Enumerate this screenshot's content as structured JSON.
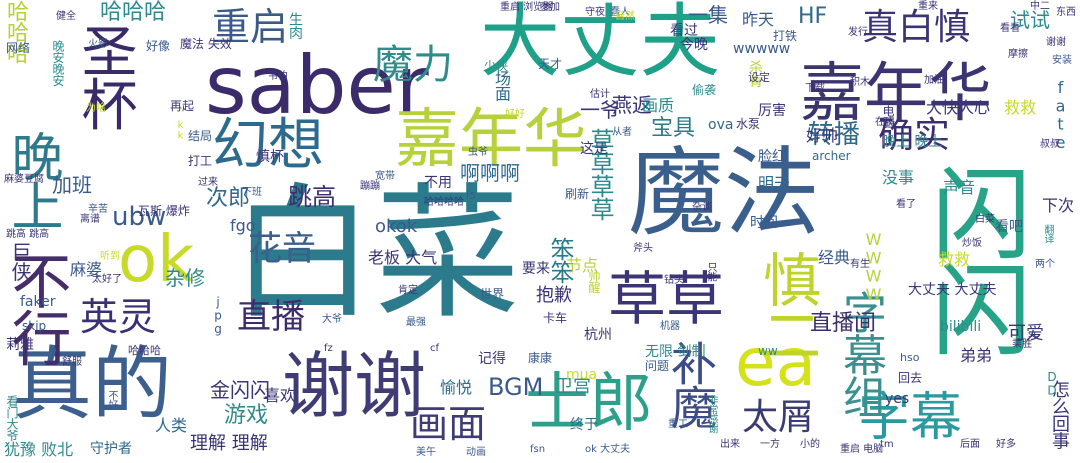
{
  "words": [
    "白菜",
    "魔法",
    "闪闪",
    "saber",
    "大丈夫",
    "嘉年华",
    "嘉年华",
    "谢谢",
    "真的",
    "不行",
    "圣杯",
    "晚上",
    "幻想",
    "ok",
    "ea",
    "士郎",
    "草草",
    "慎二",
    "字幕组",
    "字幕",
    "补魔",
    "魔力",
    "重启",
    "真白慎",
    "确实",
    "花音",
    "直播",
    "英灵",
    "ubw",
    "画面",
    "太屑",
    "直播间",
    "转播",
    "跳高",
    "次郎",
    "宝具",
    "啊啊啊",
    "草草草草",
    "笨笨",
    "BGM",
    "游戏",
    "金闪闪",
    "理解 理解",
    "哈哈哈",
    "哈哈哈",
    "巨侠",
    "加班",
    "一爷",
    "一集",
    "试试",
    "HF",
    "okok",
    "fgo",
    "老板 大气",
    "杂修",
    "燕返",
    "画质",
    "大快人心",
    "wwwww",
    "WWWW",
    "fate",
    "救救",
    "救救",
    "经典",
    "声音",
    "明天",
    "没事",
    "可爱",
    "弟弟",
    "怎么回事",
    "犹豫 败北",
    "守护者",
    "人类",
    "愉悦",
    "卫宫",
    "抱歉",
    "节点",
    "喜欢",
    "麻婆",
    "麻婆豆腐",
    "时间",
    "好帅",
    "晚上 晚上",
    "脸红",
    "archer",
    "杀肯",
    "ova",
    "帅醒",
    "看吧",
    "无限 剑制",
    "杭州",
    "mua",
    "记得",
    "大丈夫 大丈夫",
    "bilibili",
    "yes",
    "终于",
    "慎杯",
    "生肉",
    "昨天",
    "下次",
    "今晚",
    "打铁",
    "电脑",
    "好像",
    "这是",
    "要来",
    "不用",
    "刷新",
    "厉害",
    "看过",
    "DD",
    "网络",
    "晚安晚安",
    "莉雅",
    "好好",
    "水泵",
    "结局",
    "打工",
    "少侠",
    "天才",
    "设定",
    "偷袭",
    "场面",
    "瓦斯 爆炸",
    "跳高 跳高",
    "辛苦",
    "kk",
    "faker",
    "skip",
    "哈哈哈",
    "看门大爷",
    "不好",
    "魔法 失效",
    "韦伯",
    "蠢人",
    "摩擦",
    "发行",
    "翻译",
    "积木",
    "自然",
    "重启 浏览器",
    "参加",
    "世界",
    "守夜",
    "看看",
    "钻头",
    "肯定",
    "重来",
    "ww",
    "hso",
    "回去",
    "斧头",
    "炒饭",
    "只能",
    "看了",
    "安装",
    "加油",
    "火影",
    "蹦蹦",
    "fsn",
    "ok 大丈夫",
    "重启 电脑",
    "美午",
    "动画",
    "非常感谢",
    "中二",
    "舒服",
    "乘胜",
    "在吗",
    "f5",
    "听到",
    "太好了",
    "过来",
    "下班",
    "健全",
    "离谱",
    "杂谈",
    "哈哈哈哈",
    "宽带",
    "卡车",
    "最强",
    "机器",
    "sc",
    "康康",
    "问题",
    "重工",
    "估计",
    "下载",
    "再起",
    "为啥",
    "虫爷",
    "大爷",
    "从者",
    "东西",
    "jpg",
    "fz",
    "cf",
    "叔叔",
    "谢谢",
    "有生",
    "白菜",
    "两个",
    "tm",
    "后面",
    "好多",
    "出来",
    "一方",
    "小的",
    "慢慢",
    "来了",
    "开门"
  ]
}
